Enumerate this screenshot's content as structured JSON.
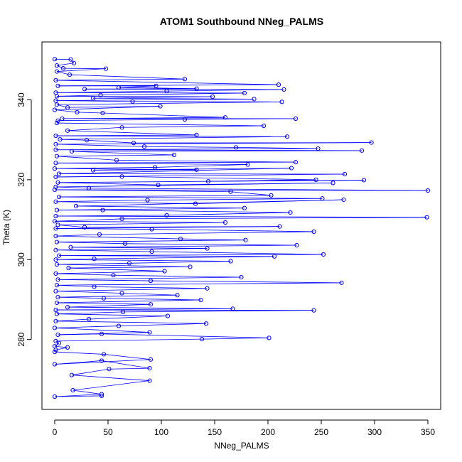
{
  "chart_data": {
    "type": "scatter",
    "connected": true,
    "title": "ATOM1 Southbound NNeg_PALMS",
    "xlabel": "NNeg_PALMS",
    "ylabel": "Theta (K)",
    "xlim": [
      -12,
      362
    ],
    "ylim": [
      262.5,
      354.5
    ],
    "x_ticks": [
      0,
      50,
      100,
      150,
      200,
      250,
      300,
      350
    ],
    "y_ticks": [
      280,
      300,
      320,
      340
    ],
    "grid": false,
    "legend": "none",
    "marker": "open-circle",
    "color": "#0000ff",
    "series": [
      {
        "points": [
          [
            0,
            350.2
          ],
          [
            15,
            350.1
          ],
          [
            18,
            349.2
          ],
          [
            2,
            348.6
          ],
          [
            8,
            347.9
          ],
          [
            48,
            347.8
          ],
          [
            2,
            347.1
          ],
          [
            14,
            346.3
          ],
          [
            122,
            345.2
          ],
          [
            1,
            344.9
          ],
          [
            210,
            343.8
          ],
          [
            3,
            343.5
          ],
          [
            95,
            343.5
          ],
          [
            60,
            343.1
          ],
          [
            133,
            342.8
          ],
          [
            28,
            342.7
          ],
          [
            215,
            342.6
          ],
          [
            105,
            342.2
          ],
          [
            1,
            341.8
          ],
          [
            178,
            341.7
          ],
          [
            43,
            341.2
          ],
          [
            2,
            340.9
          ],
          [
            148,
            340.8
          ],
          [
            36,
            340.4
          ],
          [
            187,
            340.2
          ],
          [
            1,
            339.8
          ],
          [
            73,
            339.6
          ],
          [
            213,
            339.5
          ],
          [
            2,
            338.8
          ],
          [
            12,
            338.1
          ],
          [
            99,
            338.4
          ],
          [
            0,
            337.5
          ],
          [
            21,
            336.9
          ],
          [
            45,
            336.7
          ],
          [
            160,
            335.6
          ],
          [
            7,
            335.3
          ],
          [
            226,
            335.3
          ],
          [
            122,
            335.1
          ],
          [
            3,
            334.8
          ],
          [
            2,
            334.2
          ],
          [
            196,
            333.5
          ],
          [
            63,
            333.1
          ],
          [
            12,
            332.3
          ],
          [
            133,
            331.2
          ],
          [
            1,
            331.0
          ],
          [
            218,
            330.8
          ],
          [
            5,
            330.1
          ],
          [
            30,
            329.9
          ],
          [
            74,
            329.2
          ],
          [
            297,
            329.3
          ],
          [
            1,
            328.9
          ],
          [
            84,
            328.3
          ],
          [
            170,
            328.1
          ],
          [
            247,
            327.8
          ],
          [
            1,
            327.5
          ],
          [
            288,
            327.3
          ],
          [
            16,
            327.1
          ],
          [
            112,
            326.2
          ],
          [
            2,
            325.9
          ],
          [
            58,
            324.9
          ],
          [
            226,
            324.4
          ],
          [
            1,
            324.2
          ],
          [
            181,
            323.8
          ],
          [
            94,
            323.1
          ],
          [
            0,
            322.8
          ],
          [
            133,
            322.5
          ],
          [
            36,
            322.4
          ],
          [
            222,
            322.9
          ],
          [
            4,
            321.5
          ],
          [
            272,
            321.4
          ],
          [
            1,
            320.7
          ],
          [
            63,
            320.8
          ],
          [
            245,
            320.0
          ],
          [
            144,
            319.6
          ],
          [
            290,
            319.9
          ],
          [
            3,
            319.3
          ],
          [
            97,
            318.7
          ],
          [
            261,
            319.2
          ],
          [
            1,
            318.2
          ],
          [
            32,
            317.9
          ],
          [
            350,
            317.3
          ],
          [
            0,
            317.5
          ],
          [
            165,
            317.0
          ],
          [
            203,
            316.1
          ],
          [
            4,
            315.7
          ],
          [
            251,
            315.3
          ],
          [
            87,
            314.9
          ],
          [
            1,
            314.5
          ],
          [
            132,
            314.0
          ],
          [
            271,
            315.0
          ],
          [
            20,
            313.4
          ],
          [
            178,
            312.9
          ],
          [
            2,
            312.4
          ],
          [
            45,
            312.4
          ],
          [
            221,
            311.8
          ],
          [
            105,
            311.1
          ],
          [
            1,
            310.9
          ],
          [
            349,
            310.6
          ],
          [
            63,
            310.2
          ],
          [
            0,
            309.6
          ],
          [
            160,
            309.3
          ],
          [
            3,
            308.7
          ],
          [
            28,
            308.1
          ],
          [
            211,
            308.3
          ],
          [
            1,
            307.8
          ],
          [
            91,
            307.6
          ],
          [
            243,
            307.0
          ],
          [
            42,
            306.3
          ],
          [
            1,
            305.9
          ],
          [
            118,
            305.2
          ],
          [
            179,
            304.9
          ],
          [
            2,
            304.4
          ],
          [
            66,
            304.0
          ],
          [
            227,
            303.6
          ],
          [
            15,
            303.1
          ],
          [
            143,
            302.8
          ],
          [
            1,
            302.4
          ],
          [
            91,
            302.0
          ],
          [
            252,
            301.3
          ],
          [
            4,
            301.0
          ],
          [
            206,
            300.8
          ],
          [
            37,
            300.2
          ],
          [
            1,
            300.0
          ],
          [
            165,
            299.6
          ],
          [
            70,
            299.1
          ],
          [
            2,
            298.8
          ],
          [
            127,
            298.2
          ],
          [
            13,
            297.9
          ],
          [
            103,
            297.1
          ],
          [
            1,
            296.5
          ],
          [
            55,
            296.1
          ],
          [
            175,
            295.6
          ],
          [
            3,
            295.0
          ],
          [
            90,
            294.7
          ],
          [
            269,
            294.2
          ],
          [
            2,
            293.6
          ],
          [
            37,
            293.2
          ],
          [
            143,
            292.8
          ],
          [
            1,
            292.1
          ],
          [
            63,
            291.6
          ],
          [
            115,
            291.1
          ],
          [
            3,
            290.6
          ],
          [
            46,
            290.3
          ],
          [
            137,
            289.9
          ],
          [
            2,
            289.2
          ],
          [
            90,
            288.8
          ],
          [
            12,
            288.1
          ],
          [
            167,
            287.7
          ],
          [
            1,
            287.4
          ],
          [
            243,
            287.3
          ],
          [
            64,
            286.9
          ],
          [
            2,
            286.4
          ],
          [
            106,
            285.9
          ],
          [
            32,
            285.1
          ],
          [
            1,
            284.6
          ],
          [
            142,
            284.0
          ],
          [
            60,
            283.4
          ],
          [
            0,
            282.9
          ],
          [
            89,
            281.8
          ],
          [
            3,
            281.2
          ],
          [
            44,
            281.4
          ],
          [
            201,
            280.4
          ],
          [
            138,
            280.1
          ],
          [
            1,
            279.6
          ],
          [
            4,
            279.1
          ],
          [
            0,
            278.3
          ],
          [
            12,
            278.0
          ],
          [
            1,
            277.4
          ],
          [
            0,
            276.9
          ],
          [
            46,
            276.3
          ],
          [
            90,
            275.0
          ],
          [
            0,
            273.8
          ],
          [
            44,
            274.7
          ],
          [
            89,
            272.8
          ],
          [
            51,
            272.6
          ],
          [
            16,
            271.1
          ],
          [
            89,
            269.7
          ],
          [
            17,
            267.3
          ],
          [
            44,
            266.3
          ],
          [
            0,
            265.7
          ],
          [
            44,
            265.9
          ]
        ]
      }
    ]
  }
}
